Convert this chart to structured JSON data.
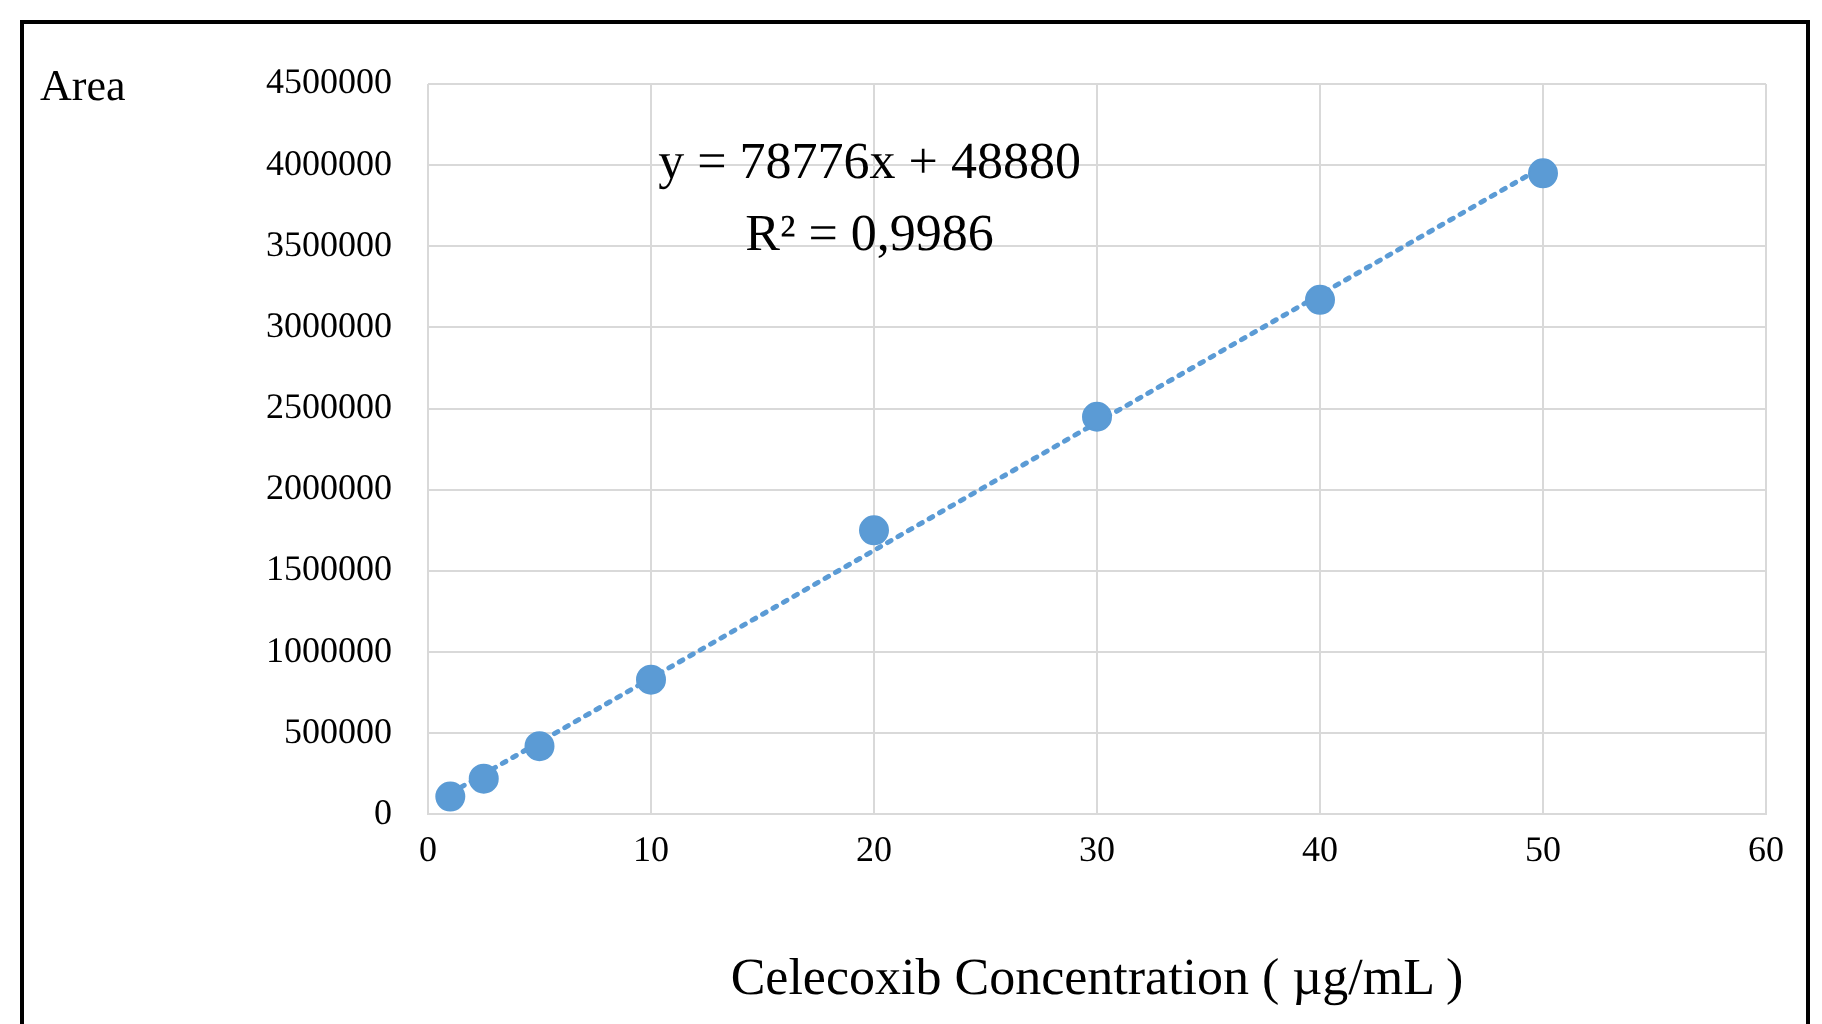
{
  "chart_data": {
    "type": "scatter",
    "ylabel": "Area",
    "xlabel": "Celecoxib Concentration ( µg/mL )",
    "annotations": [
      "y = 78776x + 48880",
      "R² = 0,9986"
    ],
    "series": [
      {
        "color": "#5b9bd5",
        "x": [
          1,
          2.5,
          5,
          10,
          20,
          30,
          40,
          50
        ],
        "values": [
          110000,
          220000,
          420000,
          830000,
          1750000,
          2450000,
          3170000,
          3950000
        ],
        "marker": "circle"
      },
      {
        "type": "line",
        "color": "#5b9bd5",
        "x": [
          1,
          50
        ],
        "values": [
          130000,
          3990000
        ],
        "line_style": "dotted",
        "marker": "none"
      }
    ],
    "xlim": [
      0,
      60
    ],
    "xticks": [
      0,
      10,
      20,
      30,
      40,
      50,
      60
    ],
    "ylim": [
      0,
      4500000
    ],
    "yticks": [
      0,
      500000,
      1000000,
      1500000,
      2000000,
      2500000,
      3000000,
      3500000,
      4000000,
      4500000
    ],
    "grid": true,
    "legend": false
  }
}
